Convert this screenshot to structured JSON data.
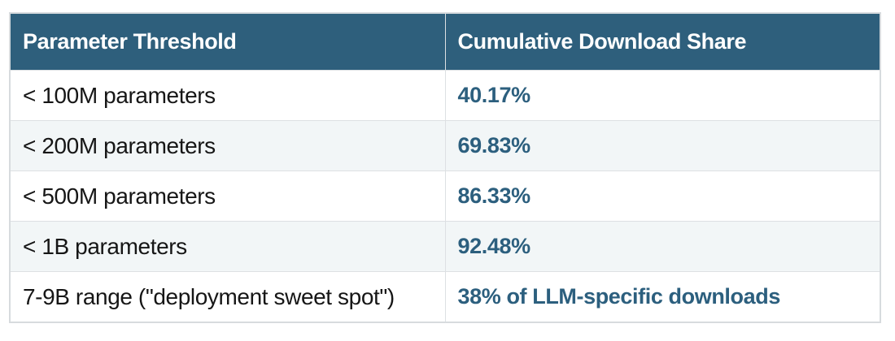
{
  "chart_data": {
    "type": "table",
    "columns": [
      "Parameter Threshold",
      "Cumulative Download Share"
    ],
    "rows": [
      [
        "< 100M parameters",
        "40.17%"
      ],
      [
        "< 200M parameters",
        "69.83%"
      ],
      [
        "< 500M parameters",
        "86.33%"
      ],
      [
        "< 1B parameters",
        "92.48%"
      ],
      [
        "7-9B range (\"deployment sweet spot\")",
        "38% of LLM-specific downloads"
      ]
    ],
    "layout_hints": {
      "header_style": "dark teal bar with white bold text",
      "row_striping": "odd rows white, even rows light gray",
      "value_column_style": "bold teal text"
    }
  },
  "colors": {
    "header_bg": "#2E5F7C",
    "header_text": "#FFFFFF",
    "value_text": "#2C5F7E",
    "body_text": "#161616",
    "row_alt_bg": "#F2F6F7",
    "border": "#DDE0E3",
    "outer_border": "#D7DBDE",
    "page_bg": "#FFFFFF"
  }
}
